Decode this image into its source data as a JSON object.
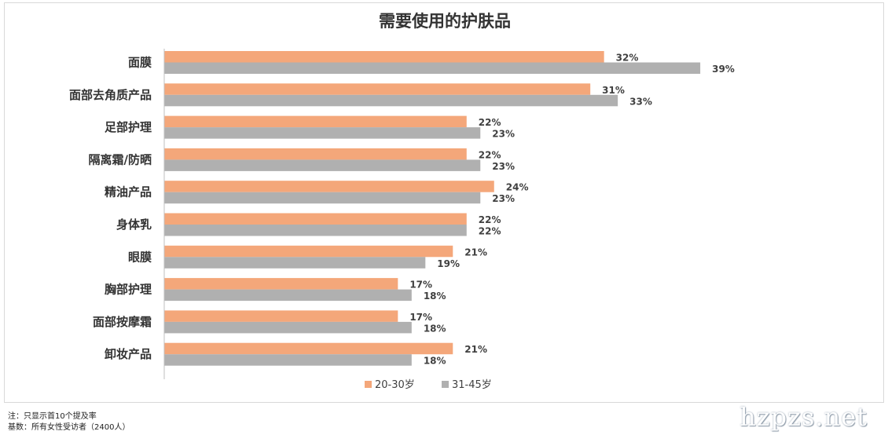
{
  "chart_data": {
    "type": "bar",
    "orientation": "horizontal",
    "title": "需要使用的护肤品",
    "categories": [
      "面膜",
      "面部去角质产品",
      "足部护理",
      "隔离霜/防晒",
      "精油产品",
      "身体乳",
      "眼膜",
      "胸部护理",
      "面部按摩霜",
      "卸妆产品"
    ],
    "series": [
      {
        "name": "20-30岁",
        "color": "#f4a77a",
        "values": [
          32,
          31,
          22,
          22,
          24,
          22,
          21,
          17,
          17,
          21
        ],
        "labels": [
          "32%",
          "31%",
          "22%",
          "22%",
          "24%",
          "22%",
          "21%",
          "17%",
          "17%",
          "21%"
        ]
      },
      {
        "name": "31-45岁",
        "color": "#b0b0b0",
        "values": [
          39,
          33,
          23,
          23,
          23,
          22,
          19,
          18,
          18,
          18
        ],
        "labels": [
          "39%",
          "33%",
          "23%",
          "23%",
          "23%",
          "22%",
          "19%",
          "18%",
          "18%",
          "18%"
        ]
      }
    ],
    "xlim": [
      0,
      49
    ],
    "grid": false,
    "legend_position": "bottom-center"
  },
  "footnotes": {
    "note": "注：只显示首10个提及率",
    "base": "基数：所有女性受访者（2400人）"
  },
  "watermark": {
    "text": "hzpzs.net"
  }
}
